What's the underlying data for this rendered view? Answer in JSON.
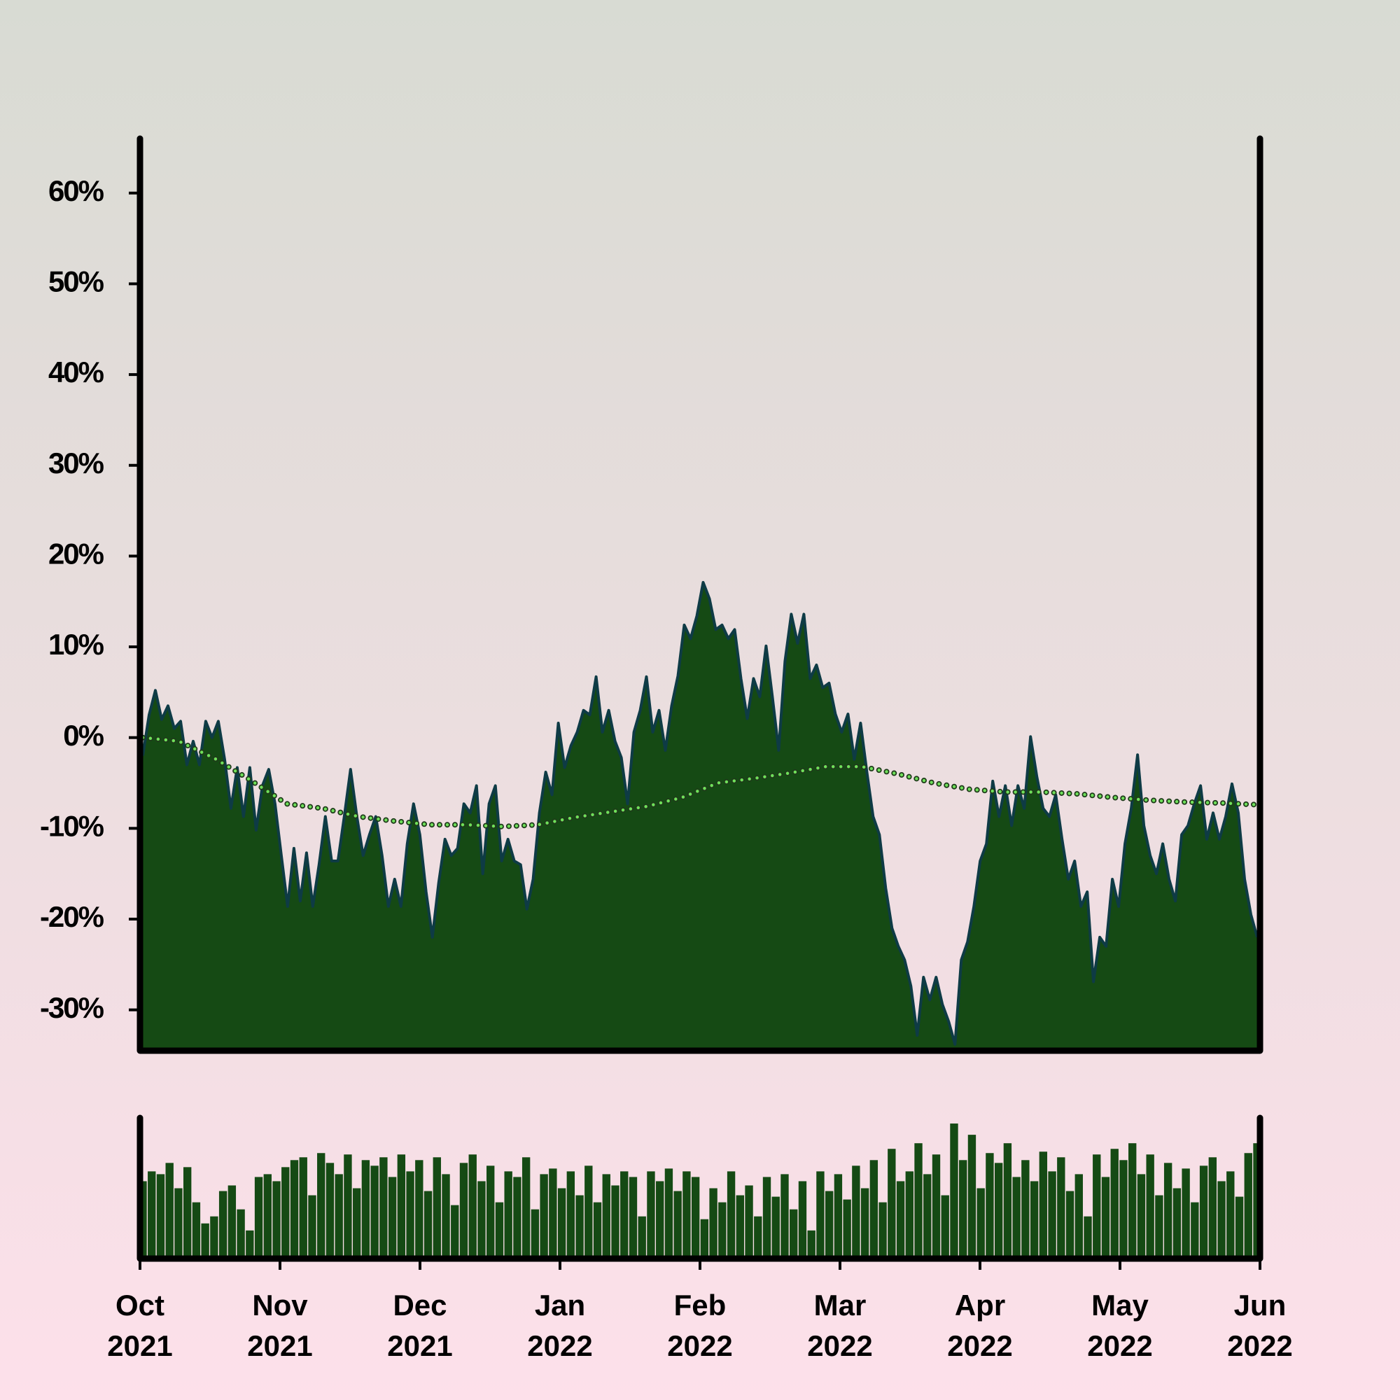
{
  "chart_data": [
    {
      "type": "area",
      "xlim": [
        "2021-10",
        "2022-06"
      ],
      "ylim": [
        -34.5,
        66
      ],
      "yticks": [
        {
          "value": -30,
          "label": "-30%"
        },
        {
          "value": -20,
          "label": "-20%"
        },
        {
          "value": -10,
          "label": "-10%"
        },
        {
          "value": 0,
          "label": "0%"
        },
        {
          "value": 10,
          "label": "10%"
        },
        {
          "value": 20,
          "label": "20%"
        },
        {
          "value": 30,
          "label": "30%"
        },
        {
          "value": 40,
          "label": "40%"
        },
        {
          "value": 50,
          "label": "50%"
        },
        {
          "value": 60,
          "label": "60%"
        }
      ],
      "series": [
        {
          "color": "#154a14",
          "line_color": "#0e3b45",
          "values": [
            -2,
            2.5,
            5.2,
            2,
            3.5,
            1,
            1.8,
            -3,
            -0.4,
            -3,
            1.8,
            0,
            1.8,
            -2.4,
            -7.8,
            -3.3,
            -8.7,
            -3.3,
            -10.2,
            -5.3,
            -3.5,
            -7.3,
            -13,
            -18.6,
            -12.2,
            -18,
            -12.7,
            -18.6,
            -14,
            -8.7,
            -13.6,
            -13.6,
            -8.7,
            -3.5,
            -8.7,
            -13,
            -10.7,
            -8.7,
            -13,
            -18.6,
            -15.6,
            -18.6,
            -11.7,
            -7.3,
            -10.7,
            -17,
            -22,
            -16,
            -11.2,
            -13,
            -12.2,
            -7.3,
            -8.3,
            -5.3,
            -15,
            -7.3,
            -5.3,
            -13.6,
            -11.2,
            -13.6,
            -14,
            -18.9,
            -15.6,
            -8.3,
            -3.8,
            -6.3,
            1.6,
            -3.3,
            -0.9,
            0.6,
            3,
            2.5,
            6.7,
            0.6,
            3,
            -0.4,
            -2.2,
            -7.3,
            0.6,
            3,
            6.7,
            0.6,
            3,
            -1.4,
            3.5,
            6.8,
            12.4,
            10.9,
            13.4,
            17.1,
            15.3,
            11.9,
            12.4,
            10.9,
            11.9,
            6.5,
            2.1,
            6.5,
            4.5,
            10.1,
            4.5,
            -1.4,
            8.4,
            13.6,
            10.4,
            13.6,
            6.5,
            8,
            5.5,
            6,
            2.6,
            0.6,
            2.6,
            -2.4,
            1.6,
            -3.8,
            -8.7,
            -10.7,
            -16.6,
            -21,
            -23,
            -24.5,
            -27.4,
            -32.8,
            -26.4,
            -28.9,
            -26.4,
            -29.4,
            -31.3,
            -33.8,
            -24.5,
            -22.5,
            -18.6,
            -13.6,
            -11.7,
            -4.8,
            -8.7,
            -5.3,
            -9.7,
            -5.3,
            -7.8,
            0.1,
            -4.3,
            -7.8,
            -8.7,
            -6.3,
            -11.2,
            -15.6,
            -13.6,
            -18.6,
            -17,
            -26.9,
            -22,
            -23,
            -15.6,
            -18.6,
            -11.7,
            -7.8,
            -1.9,
            -9.7,
            -13,
            -15,
            -11.7,
            -15.6,
            -18,
            -10.7,
            -9.7,
            -7.3,
            -5.3,
            -11.2,
            -8.3,
            -11.2,
            -8.7,
            -5.1,
            -8.3,
            -15.6,
            -19.5,
            -22
          ]
        },
        {
          "color": "#6fe05a",
          "line_style": "dotted",
          "values": [
            0,
            -0.4,
            -2.3,
            -4.7,
            -7.3,
            -7.8,
            -8.7,
            -9.2,
            -9.6,
            -9.6,
            -9.8,
            -9.6,
            -8.8,
            -8.2,
            -7.6,
            -6.6,
            -5,
            -4.5,
            -3.9,
            -3.2,
            -3.2,
            -4,
            -5,
            -5.7,
            -6,
            -6,
            -6.2,
            -6.6,
            -6.9,
            -7.1,
            -7.2,
            -7.4
          ]
        }
      ]
    },
    {
      "type": "bar",
      "color": "#154a14",
      "xlim": [
        "2021-10",
        "2022-06"
      ],
      "ylim": [
        0,
        100
      ],
      "xticks": [
        {
          "value": "2021-10",
          "label": "Oct 2021"
        },
        {
          "value": "2021-11",
          "label": "Nov 2021"
        },
        {
          "value": "2021-12",
          "label": "Dec 2021"
        },
        {
          "value": "2022-01",
          "label": "Jan 2022"
        },
        {
          "value": "2022-02",
          "label": "Feb 2022"
        },
        {
          "value": "2022-03",
          "label": "Mar 2022"
        },
        {
          "value": "2022-04",
          "label": "Apr 2022"
        },
        {
          "value": "2022-05",
          "label": "May 2022"
        },
        {
          "value": "2022-06",
          "label": "Jun 2022"
        }
      ],
      "values": [
        55,
        62,
        60,
        68,
        50,
        65,
        40,
        25,
        30,
        48,
        52,
        35,
        20,
        58,
        60,
        55,
        65,
        70,
        72,
        45,
        75,
        68,
        60,
        74,
        50,
        70,
        66,
        72,
        58,
        74,
        62,
        70,
        48,
        72,
        60,
        38,
        68,
        74,
        55,
        66,
        40,
        62,
        58,
        72,
        35,
        60,
        64,
        50,
        62,
        45,
        66,
        40,
        60,
        52,
        62,
        58,
        30,
        62,
        55,
        64,
        48,
        62,
        58,
        28,
        50,
        40,
        62,
        45,
        52,
        30,
        58,
        44,
        60,
        35,
        55,
        20,
        62,
        48,
        60,
        42,
        66,
        50,
        70,
        40,
        78,
        55,
        62,
        82,
        60,
        74,
        45,
        96,
        70,
        88,
        50,
        75,
        68,
        82,
        58,
        70,
        55,
        76,
        62,
        72,
        48,
        60,
        30,
        74,
        58,
        78,
        70,
        82,
        60,
        74,
        45,
        68,
        50,
        64,
        40,
        66,
        72,
        55,
        62,
        44,
        75,
        82
      ]
    }
  ]
}
